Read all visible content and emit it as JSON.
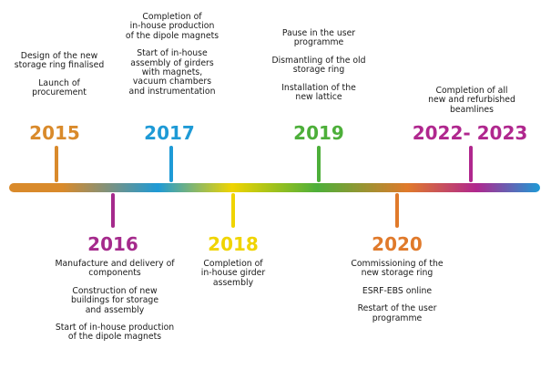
{
  "colors": {
    "orange": "#D98A2B",
    "blue": "#1E9AD6",
    "purple": "#A52A8C",
    "yellow": "#F0D400",
    "green": "#4DAF3A",
    "dark_orange": "#E07A2B",
    "magenta": "#B0278E"
  },
  "milestones": [
    {
      "year": "2015",
      "events": [
        [
          "Design of the new",
          "storage ring finalised"
        ],
        [
          "Launch of",
          "procurement"
        ]
      ]
    },
    {
      "year": "2016",
      "events": [
        [
          "Manufacture and delivery of",
          "components"
        ],
        [
          "Construction of new",
          "buildings for storage",
          "and assembly"
        ],
        [
          "Start of in-house production",
          "of the dipole magnets"
        ]
      ]
    },
    {
      "year": "2017",
      "events": [
        [
          "Completion of",
          "in-house production",
          "of the dipole magnets"
        ],
        [
          "Start of in-house",
          "assembly of girders",
          "with magnets,",
          "vacuum chambers",
          "and instrumentation"
        ]
      ]
    },
    {
      "year": "2018",
      "events": [
        [
          "Completion of",
          "in-house girder",
          "assembly"
        ]
      ]
    },
    {
      "year": "2019",
      "events": [
        [
          "Pause in the user",
          "programme"
        ],
        [
          "Dismantling of the old",
          "storage ring"
        ],
        [
          "Installation of the",
          "new lattice"
        ]
      ]
    },
    {
      "year": "2020",
      "events": [
        [
          "Commissioning of the",
          "new storage ring"
        ],
        [
          "ESRF-EBS online"
        ],
        [
          "Restart of the user",
          "programme"
        ]
      ]
    },
    {
      "year": "2022- 2023",
      "events": [
        [
          "Completion of all",
          "new and refurbished",
          "beamlines"
        ]
      ]
    }
  ]
}
